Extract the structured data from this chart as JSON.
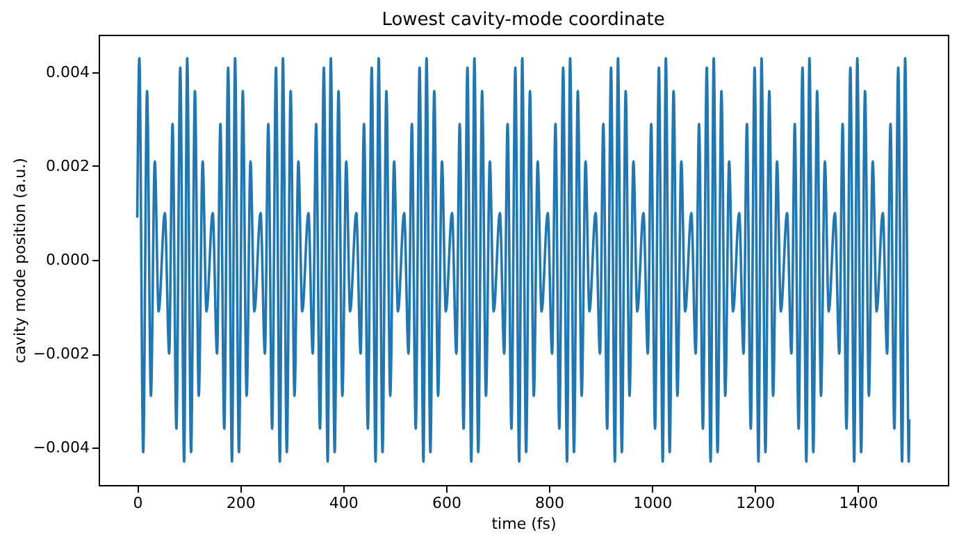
{
  "chart_data": {
    "type": "line",
    "title": "Lowest cavity-mode coordinate",
    "xlabel": "time (fs)",
    "ylabel": "cavity mode position (a.u.)",
    "x": [
      0,
      4,
      11.5,
      19,
      26.5,
      34,
      41.5,
      53.5,
      62,
      68.5,
      76,
      83.5,
      91,
      97,
      104.5,
      112,
      119.5,
      127,
      134.5,
      146.5,
      155,
      161.5,
      169,
      176.5,
      184,
      190,
      197.5,
      205,
      212.5,
      220,
      227.5,
      239.5,
      248,
      254.5,
      262,
      269.5,
      277,
      283,
      290.5,
      298,
      305.5,
      313,
      320.5,
      332.5,
      341,
      347.5,
      355,
      362.5,
      370,
      376,
      383.5,
      391,
      398.5,
      406,
      413.5,
      425.5,
      434,
      440.5,
      448,
      455.5,
      463,
      469,
      476.5,
      484,
      491.5,
      499,
      506.5,
      518.5,
      527,
      533.5,
      541,
      548.5,
      556,
      562,
      569.5,
      577,
      584.5,
      592,
      599.5,
      611.5,
      620,
      626.5,
      634,
      641.5,
      649,
      655,
      662.5,
      670,
      677.5,
      685,
      692.5,
      704.5,
      713,
      719.5,
      727,
      734.5,
      742,
      748,
      755.5,
      763,
      770.5,
      778,
      785.5,
      797.5,
      806,
      812.5,
      820,
      827.5,
      835,
      841,
      848.5,
      856,
      863.5,
      871,
      878.5,
      890.5,
      899,
      905.5,
      913,
      920.5,
      928,
      934,
      941.5,
      949,
      956.5,
      964,
      971.5,
      983.5,
      992,
      998.5,
      1006,
      1013.5,
      1021,
      1027,
      1034.5,
      1042,
      1049.5,
      1057,
      1064.5,
      1076.5,
      1085,
      1091.5,
      1099,
      1106.5,
      1114,
      1120,
      1127.5,
      1135,
      1142.5,
      1150,
      1157.5,
      1169.5,
      1178,
      1184.5,
      1192,
      1199.5,
      1207,
      1213,
      1220.5,
      1228,
      1235.5,
      1243,
      1250.5,
      1262.5,
      1271,
      1277.5,
      1285,
      1292.5,
      1300,
      1306,
      1313.5,
      1321,
      1328.5,
      1336,
      1343.5,
      1355.5,
      1364,
      1370.5,
      1378,
      1385.5,
      1393,
      1399,
      1406.5,
      1414,
      1421.5,
      1429,
      1436.5,
      1448.5,
      1457,
      1463.5,
      1471,
      1478.5,
      1486,
      1492,
      1499,
      1500
    ],
    "series": [
      {
        "color": "#1f77b4",
        "values": [
          0.0009,
          0.0043,
          -0.0041,
          0.0036,
          -0.0029,
          0.0021,
          -0.0011,
          0.001,
          -0.002,
          0.0029,
          -0.0036,
          0.0041,
          -0.0043,
          0.0043,
          -0.0041,
          0.0036,
          -0.0029,
          0.0021,
          -0.0011,
          0.001,
          -0.002,
          0.0029,
          -0.0036,
          0.0041,
          -0.0043,
          0.0043,
          -0.0041,
          0.0036,
          -0.0029,
          0.0021,
          -0.0011,
          0.001,
          -0.002,
          0.0029,
          -0.0036,
          0.0041,
          -0.0043,
          0.0043,
          -0.0041,
          0.0036,
          -0.0029,
          0.0021,
          -0.0011,
          0.001,
          -0.002,
          0.0029,
          -0.0036,
          0.0041,
          -0.0043,
          0.0043,
          -0.0041,
          0.0036,
          -0.0029,
          0.0021,
          -0.0011,
          0.001,
          -0.002,
          0.0029,
          -0.0036,
          0.0041,
          -0.0043,
          0.0043,
          -0.0041,
          0.0036,
          -0.0029,
          0.0021,
          -0.0011,
          0.001,
          -0.002,
          0.0029,
          -0.0036,
          0.0041,
          -0.0043,
          0.0043,
          -0.0041,
          0.0036,
          -0.0029,
          0.0021,
          -0.0011,
          0.001,
          -0.002,
          0.0029,
          -0.0036,
          0.0041,
          -0.0043,
          0.0043,
          -0.0041,
          0.0036,
          -0.0029,
          0.0021,
          -0.0011,
          0.001,
          -0.002,
          0.0029,
          -0.0036,
          0.0041,
          -0.0043,
          0.0043,
          -0.0041,
          0.0036,
          -0.0029,
          0.0021,
          -0.0011,
          0.001,
          -0.002,
          0.0029,
          -0.0036,
          0.0041,
          -0.0043,
          0.0043,
          -0.0041,
          0.0036,
          -0.0029,
          0.0021,
          -0.0011,
          0.001,
          -0.002,
          0.0029,
          -0.0036,
          0.0041,
          -0.0043,
          0.0043,
          -0.0041,
          0.0036,
          -0.0029,
          0.0021,
          -0.0011,
          0.001,
          -0.002,
          0.0029,
          -0.0036,
          0.0041,
          -0.0043,
          0.0043,
          -0.0041,
          0.0036,
          -0.0029,
          0.0021,
          -0.0011,
          0.001,
          -0.002,
          0.0029,
          -0.0036,
          0.0041,
          -0.0043,
          0.0043,
          -0.0041,
          0.0036,
          -0.0029,
          0.0021,
          -0.0011,
          0.001,
          -0.002,
          0.0029,
          -0.0036,
          0.0041,
          -0.0043,
          0.0043,
          -0.0041,
          0.0036,
          -0.0029,
          0.0021,
          -0.0011,
          0.001,
          -0.002,
          0.0029,
          -0.0036,
          0.0041,
          -0.0043,
          0.0043,
          -0.0041,
          0.0036,
          -0.0029,
          0.0021,
          -0.0011,
          0.001,
          -0.002,
          0.0029,
          -0.0036,
          0.0041,
          -0.0043,
          0.0043,
          -0.0041,
          0.0036,
          -0.0029,
          0.0021,
          -0.0011,
          0.001,
          -0.002,
          0.0029,
          -0.0036,
          0.0041,
          -0.0043,
          0.0043,
          -0.0043,
          -0.0034
        ]
      }
    ],
    "xlim": [
      -75,
      1575
    ],
    "xticks": [
      0,
      200,
      400,
      600,
      800,
      1000,
      1200,
      1400
    ],
    "ylim": [
      -0.0048,
      0.0048
    ],
    "yticks": [
      {
        "value": -0.004,
        "label": "−0.004"
      },
      {
        "value": -0.002,
        "label": "−0.002"
      },
      {
        "value": 0,
        "label": "0.000"
      },
      {
        "value": 0.002,
        "label": "0.002"
      },
      {
        "value": 0.004,
        "label": "0.004"
      }
    ],
    "grid": false
  }
}
